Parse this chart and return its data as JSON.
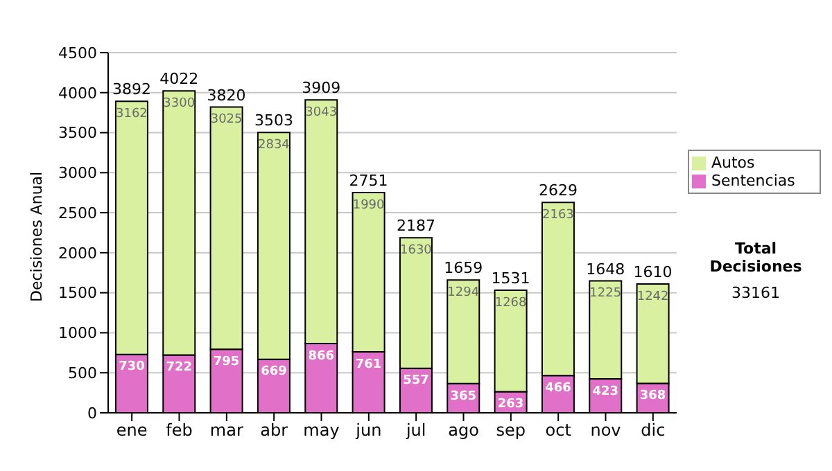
{
  "chart_data": {
    "type": "bar",
    "stacked": true,
    "ylabel": "Decisiones Anual",
    "categories": [
      "ene",
      "feb",
      "mar",
      "abr",
      "may",
      "jun",
      "jul",
      "ago",
      "sep",
      "oct",
      "nov",
      "dic"
    ],
    "series": [
      {
        "name": "Sentencias",
        "color": "#e070c8",
        "values": [
          730,
          722,
          795,
          669,
          866,
          761,
          557,
          365,
          263,
          466,
          423,
          368
        ]
      },
      {
        "name": "Autos",
        "color": "#d9f0a0",
        "values": [
          3162,
          3300,
          3025,
          2834,
          3043,
          1990,
          1630,
          1294,
          1268,
          2163,
          1225,
          1242
        ]
      }
    ],
    "totals": [
      "3892",
      "4022",
      "3820",
      "3503",
      "3909",
      "2751",
      "2187",
      "1659",
      "1531",
      "2629",
      "1648",
      "1610"
    ],
    "data_labels": true,
    "ylim": [
      0,
      4500
    ],
    "yticks": [
      0,
      500,
      1000,
      1500,
      2000,
      2500,
      3000,
      3500,
      4000,
      4500
    ],
    "grid": "y",
    "legend": "right",
    "annotations": [
      "Total Decisiones",
      "33161"
    ]
  }
}
